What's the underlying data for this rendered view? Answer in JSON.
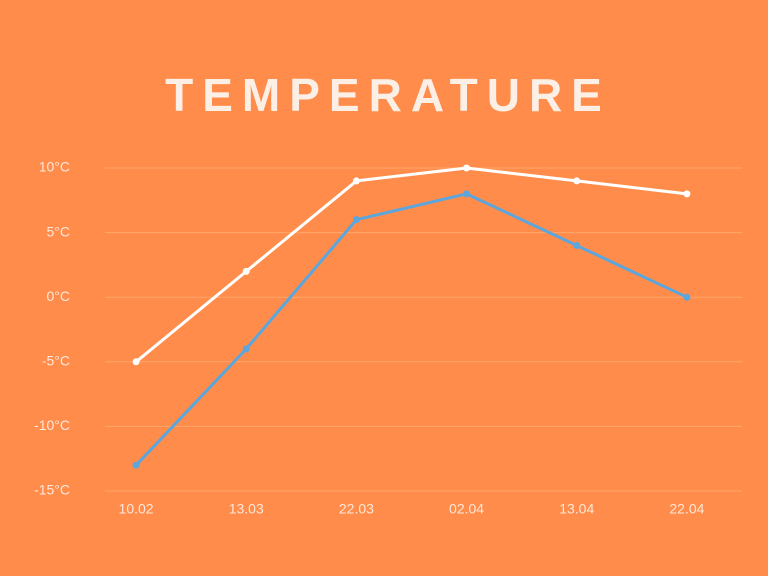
{
  "chart_data": {
    "type": "line",
    "title": "TEMPERATURE",
    "categories": [
      "10.02",
      "13.03",
      "22.03",
      "02.04",
      "13.04",
      "22.04"
    ],
    "series": [
      {
        "color": "#ffffff",
        "values": [
          -5,
          2,
          9,
          10,
          9,
          8
        ]
      },
      {
        "color": "#5aa6dd",
        "values": [
          -13,
          -4,
          6,
          8,
          4,
          0
        ]
      }
    ],
    "ylim": [
      -15,
      10
    ],
    "yticks": [
      {
        "value": 10,
        "label": "10°C"
      },
      {
        "value": 5,
        "label": "5°C"
      },
      {
        "value": 0,
        "label": "0°C"
      },
      {
        "value": -5,
        "label": "-5°C"
      },
      {
        "value": -10,
        "label": "-10°C"
      },
      {
        "value": -15,
        "label": "-15°C"
      }
    ],
    "grid": true
  }
}
